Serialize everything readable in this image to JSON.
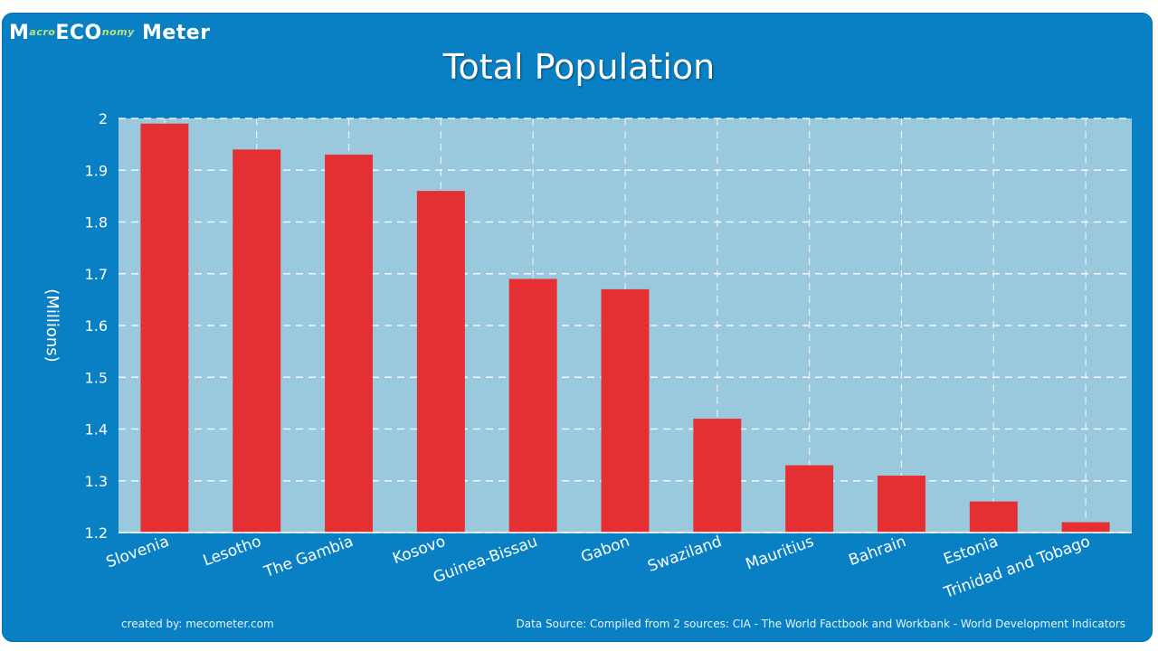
{
  "logo": {
    "text_start": "M",
    "text_accent": "acro",
    "text_mid": "ECO",
    "text_accent2": "nomy",
    "text_end": "Meter"
  },
  "footer": {
    "created_by": "created by: mecometer.com",
    "source": "Data Source: Compiled from 2 sources: CIA - The World Factbook and Workbank - World Development Indicators"
  },
  "colors": {
    "background": "#0a80c4",
    "plot": "#9ac8dd",
    "bar": "#e53033"
  },
  "chart_data": {
    "type": "bar",
    "title": "Total Population",
    "xlabel": "",
    "ylabel": "(Millions)",
    "ylim": [
      1.2,
      2.0
    ],
    "yticks": [
      "1.2",
      "1.3",
      "1.4",
      "1.5",
      "1.6",
      "1.7",
      "1.8",
      "1.9",
      "2"
    ],
    "grid": true,
    "categories": [
      "Slovenia",
      "Lesotho",
      "The Gambia",
      "Kosovo",
      "Guinea-Bissau",
      "Gabon",
      "Swaziland",
      "Mauritius",
      "Bahrain",
      "Estonia",
      "Trinidad and Tobago"
    ],
    "values": [
      1.99,
      1.94,
      1.93,
      1.86,
      1.69,
      1.67,
      1.42,
      1.33,
      1.31,
      1.26,
      1.22
    ]
  }
}
